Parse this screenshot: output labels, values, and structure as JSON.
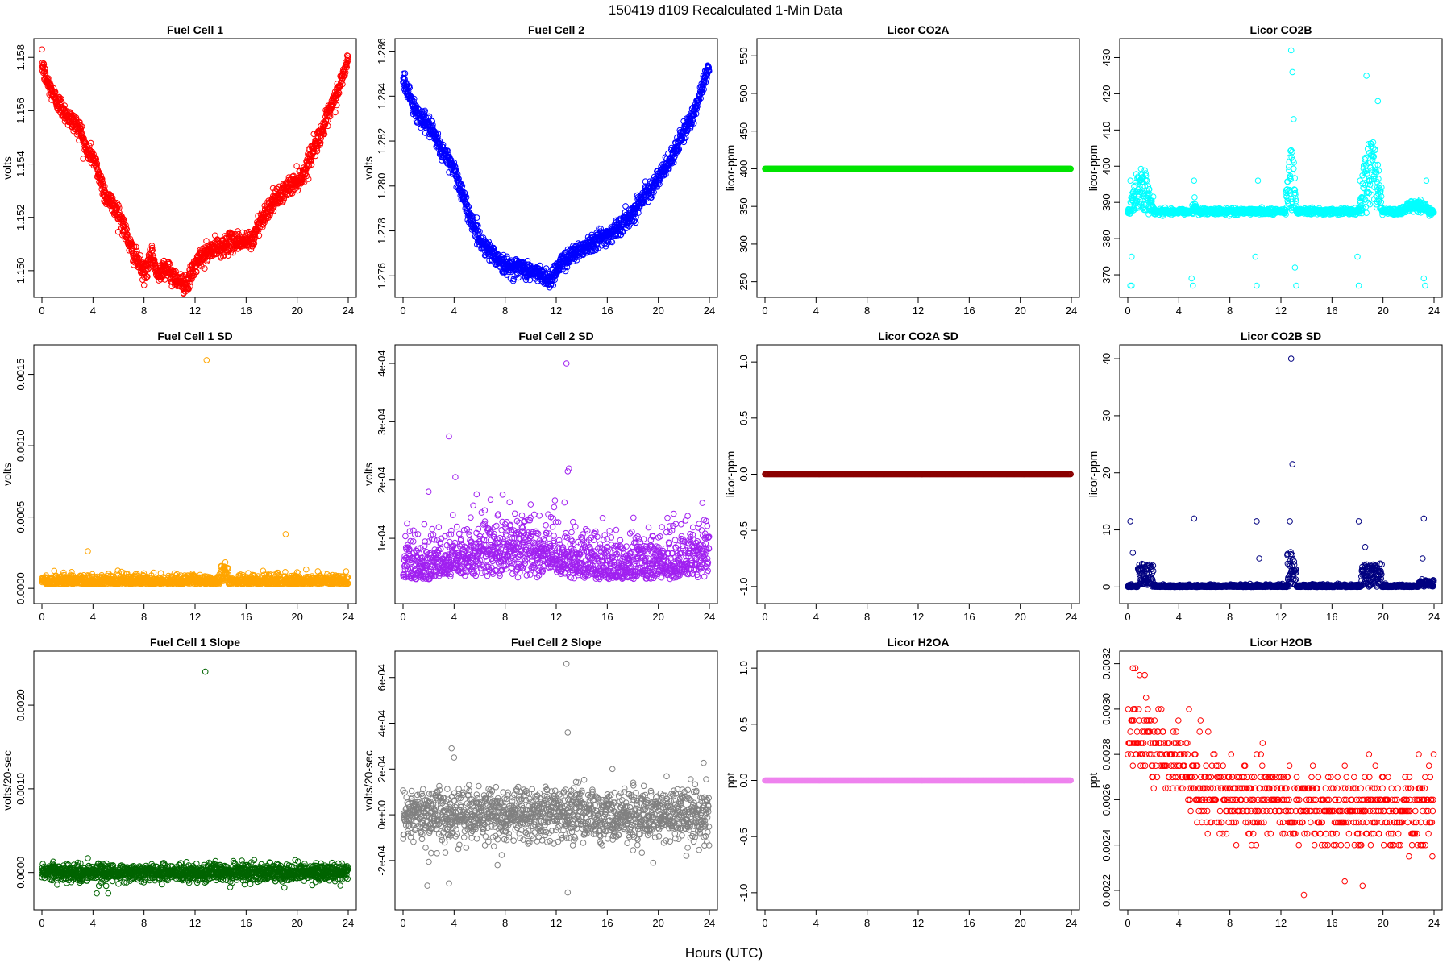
{
  "figure": {
    "title": "150419   d109   Recalculated 1-Min Data",
    "xlabel": "Hours (UTC)"
  },
  "chart_data": [
    {
      "type": "scatter",
      "title": "Fuel Cell 1",
      "ylabel": "volts",
      "color": "#ff0000",
      "xlim": [
        0,
        24
      ],
      "ylim": [
        1.1493,
        1.1584
      ],
      "xticks": [
        0,
        4,
        8,
        12,
        16,
        20,
        24
      ],
      "yticks": [
        1.15,
        1.152,
        1.154,
        1.156,
        1.158
      ],
      "ytick_labels": [
        "1.150",
        "1.152",
        "1.154",
        "1.156",
        "1.158"
      ],
      "pattern": {
        "kind": "anchors",
        "x": [
          0,
          0.3,
          1,
          2,
          3,
          3.5,
          4,
          5,
          6,
          7,
          8,
          8.7,
          9,
          9.5,
          10,
          11,
          11.5,
          12,
          12.5,
          13,
          14,
          15,
          16,
          16.5,
          17,
          18,
          19,
          20,
          20.5,
          21,
          22,
          23,
          23.5,
          24
        ],
        "y": [
          1.1578,
          1.1572,
          1.1565,
          1.1558,
          1.1553,
          1.1545,
          1.1543,
          1.1528,
          1.1522,
          1.1508,
          1.1499,
          1.1506,
          1.1498,
          1.1502,
          1.1499,
          1.1495,
          1.1496,
          1.1502,
          1.1505,
          1.1507,
          1.1509,
          1.1511,
          1.1511,
          1.1511,
          1.1518,
          1.1525,
          1.153,
          1.1534,
          1.1536,
          1.1543,
          1.1553,
          1.1565,
          1.1572,
          1.1579
        ],
        "noise": 0.00018
      }
    },
    {
      "type": "scatter",
      "title": "Fuel Cell 2",
      "ylabel": "volts",
      "color": "#0000ff",
      "xlim": [
        0,
        24
      ],
      "ylim": [
        1.2754,
        1.2862
      ],
      "xticks": [
        0,
        4,
        8,
        12,
        16,
        20,
        24
      ],
      "yticks": [
        1.276,
        1.278,
        1.28,
        1.282,
        1.284,
        1.286
      ],
      "ytick_labels": [
        "1.276",
        "1.278",
        "1.280",
        "1.282",
        "1.284",
        "1.286"
      ],
      "pattern": {
        "kind": "anchors",
        "x": [
          0,
          1,
          2,
          3,
          4,
          5,
          6,
          7,
          8,
          9,
          10,
          11,
          11.5,
          12,
          13,
          14,
          15,
          16,
          17,
          18,
          19,
          20,
          21,
          22,
          23,
          24
        ],
        "y": [
          1.2848,
          1.2833,
          1.2827,
          1.2816,
          1.2808,
          1.279,
          1.2776,
          1.277,
          1.2764,
          1.2764,
          1.2762,
          1.276,
          1.2758,
          1.2763,
          1.2769,
          1.2772,
          1.2776,
          1.2778,
          1.2782,
          1.2788,
          1.2797,
          1.2803,
          1.2812,
          1.2824,
          1.2835,
          1.2855
        ],
        "noise": 0.0002
      }
    },
    {
      "type": "scatter",
      "title": "Licor CO2A",
      "ylabel": "licor-ppm",
      "color": "#00e400",
      "xlim": [
        0,
        24
      ],
      "ylim": [
        240,
        562
      ],
      "xticks": [
        0,
        4,
        8,
        12,
        16,
        20,
        24
      ],
      "yticks": [
        250,
        300,
        350,
        400,
        450,
        500,
        550
      ],
      "ytick_labels": [
        "250",
        "300",
        "350",
        "400",
        "450",
        "500",
        "550"
      ],
      "pattern": {
        "kind": "constant",
        "value": 400,
        "noise": 0
      }
    },
    {
      "type": "scatter",
      "title": "Licor CO2B",
      "ylabel": "licor-ppm",
      "color": "#00ffff",
      "xlim": [
        0,
        24
      ],
      "ylim": [
        366,
        433
      ],
      "xticks": [
        0,
        4,
        8,
        12,
        16,
        20,
        24
      ],
      "yticks": [
        370,
        380,
        390,
        400,
        410,
        420,
        430
      ],
      "ytick_labels": [
        "370",
        "380",
        "390",
        "400",
        "410",
        "420",
        "430"
      ],
      "pattern": {
        "kind": "base_with_bursts",
        "base": 387.5,
        "noise": 0.4,
        "bursts": [
          {
            "x0": 0.2,
            "x1": 2.0,
            "amp": 12
          },
          {
            "x0": 5.0,
            "x1": 5.4,
            "amp": 3
          },
          {
            "x0": 12.4,
            "x1": 13.2,
            "amp": 18
          },
          {
            "x0": 18.2,
            "x1": 19.9,
            "amp": 20
          },
          {
            "x0": 21.5,
            "x1": 23.6,
            "amp": 3
          }
        ],
        "outliers": [
          [
            0.2,
            396
          ],
          [
            0.3,
            375
          ],
          [
            0.2,
            367
          ],
          [
            0.3,
            367
          ],
          [
            5.0,
            369
          ],
          [
            5.1,
            367
          ],
          [
            5.2,
            396
          ],
          [
            10.0,
            375
          ],
          [
            10.1,
            367
          ],
          [
            10.2,
            396
          ],
          [
            12.8,
            432
          ],
          [
            12.9,
            426
          ],
          [
            13.0,
            413
          ],
          [
            13.1,
            372
          ],
          [
            13.2,
            367
          ],
          [
            18.0,
            375
          ],
          [
            18.1,
            367
          ],
          [
            18.2,
            396
          ],
          [
            18.7,
            425
          ],
          [
            19.6,
            418
          ],
          [
            23.2,
            369
          ],
          [
            23.3,
            367
          ],
          [
            23.4,
            396
          ]
        ]
      }
    },
    {
      "type": "scatter",
      "title": "Fuel Cell 1 SD",
      "ylabel": "volts",
      "color": "#ffa500",
      "xlim": [
        0,
        24
      ],
      "ylim": [
        -5e-05,
        0.00165
      ],
      "xticks": [
        0,
        4,
        8,
        12,
        16,
        20,
        24
      ],
      "yticks": [
        0,
        0.0005,
        0.001,
        0.0015
      ],
      "ytick_labels": [
        "0.0000",
        "0.0005",
        "0.0010",
        "0.0015"
      ],
      "pattern": {
        "kind": "positive_noise",
        "base": 3e-05,
        "spread": 5e-05,
        "bursts": [
          {
            "x0": 14.0,
            "x1": 14.6,
            "amp": 0.0001
          }
        ],
        "outliers": [
          [
            12.9,
            0.0016
          ],
          [
            3.6,
            0.00026
          ],
          [
            19.1,
            0.00038
          ]
        ]
      }
    },
    {
      "type": "scatter",
      "title": "Fuel Cell 2 SD",
      "ylabel": "volts",
      "color": "#a020f0",
      "xlim": [
        0,
        24
      ],
      "ylim": [
        2e-06,
        0.000418
      ],
      "xticks": [
        0,
        4,
        8,
        12,
        16,
        20,
        24
      ],
      "yticks": [
        0.0001,
        0.0002,
        0.0003,
        0.0004
      ],
      "ytick_labels": [
        "1e-04",
        "2e-04",
        "3e-04",
        "4e-04"
      ],
      "pattern": {
        "kind": "positive_noise",
        "base": 3e-05,
        "spread": 6e-05,
        "hump": {
          "x0": 2.0,
          "x1": 15.0,
          "amp": 5e-05
        },
        "bursts": [
          {
            "x0": 21.8,
            "x1": 24.0,
            "amp": 3e-05
          }
        ],
        "outliers": [
          [
            12.8,
            0.0004
          ],
          [
            12.9,
            0.000215
          ],
          [
            13.0,
            0.00022
          ],
          [
            3.6,
            0.000275
          ],
          [
            4.1,
            0.000205
          ],
          [
            2.0,
            0.00018
          ],
          [
            11.9,
            0.000165
          ]
        ]
      }
    },
    {
      "type": "scatter",
      "title": "Licor CO2A SD",
      "ylabel": "licor-ppm",
      "color": "#8b0000",
      "xlim": [
        0,
        24
      ],
      "ylim": [
        -1.08,
        1.08
      ],
      "xticks": [
        0,
        4,
        8,
        12,
        16,
        20,
        24
      ],
      "yticks": [
        -1,
        -0.5,
        0,
        0.5,
        1
      ],
      "ytick_labels": [
        "-1.0",
        "-0.5",
        "0.0",
        "0.5",
        "1.0"
      ],
      "pattern": {
        "kind": "constant",
        "value": 0,
        "noise": 0
      }
    },
    {
      "type": "scatter",
      "title": "Licor CO2B SD",
      "ylabel": "licor-ppm",
      "color": "#000080",
      "xlim": [
        0,
        24
      ],
      "ylim": [
        -1.5,
        41
      ],
      "xticks": [
        0,
        4,
        8,
        12,
        16,
        20,
        24
      ],
      "yticks": [
        0,
        10,
        20,
        30,
        40
      ],
      "ytick_labels": [
        "0",
        "10",
        "20",
        "30",
        "40"
      ],
      "pattern": {
        "kind": "positive_noise",
        "base": 0.0,
        "spread": 0.3,
        "bursts": [
          {
            "x0": 0.8,
            "x1": 2.0,
            "amp": 4
          },
          {
            "x0": 12.5,
            "x1": 13.2,
            "amp": 6
          },
          {
            "x0": 18.3,
            "x1": 19.9,
            "amp": 4
          },
          {
            "x0": 22.8,
            "x1": 24.0,
            "amp": 1
          }
        ],
        "outliers": [
          [
            0.2,
            11.5
          ],
          [
            0.4,
            6
          ],
          [
            5.2,
            12
          ],
          [
            10.1,
            11.5
          ],
          [
            10.3,
            5
          ],
          [
            12.8,
            40
          ],
          [
            12.9,
            21.5
          ],
          [
            12.7,
            11.5
          ],
          [
            18.1,
            11.5
          ],
          [
            18.6,
            7
          ],
          [
            23.2,
            12
          ],
          [
            23.1,
            5
          ]
        ]
      }
    },
    {
      "type": "scatter",
      "title": "Fuel Cell 1 Slope",
      "ylabel": "volts/20-sec",
      "color": "#006400",
      "xlim": [
        0,
        24
      ],
      "ylim": [
        -0.00035,
        0.00255
      ],
      "xticks": [
        0,
        4,
        8,
        12,
        16,
        20,
        24
      ],
      "yticks": [
        0,
        0.001,
        0.002
      ],
      "ytick_labels": [
        "0.0000",
        "0.0010",
        "0.0020"
      ],
      "pattern": {
        "kind": "symmetric_noise",
        "center": 0,
        "spread": 5e-05,
        "outliers": [
          [
            12.8,
            0.0024
          ],
          [
            3.6,
            0.00017
          ],
          [
            4.3,
            -0.00025
          ],
          [
            5.2,
            -0.00025
          ],
          [
            19.0,
            -0.00018
          ]
        ]
      }
    },
    {
      "type": "scatter",
      "title": "Fuel Cell 2 Slope",
      "ylabel": "volts/20-sec",
      "color": "#808080",
      "xlim": [
        0,
        24
      ],
      "ylim": [
        -0.00038,
        0.00068
      ],
      "xticks": [
        0,
        4,
        8,
        12,
        16,
        20,
        24
      ],
      "yticks": [
        -0.0002,
        0,
        0.0002,
        0.0004,
        0.0006
      ],
      "ytick_labels": [
        "-2e-04",
        "0e+00",
        "2e-04",
        "4e-04",
        "6e-04"
      ],
      "pattern": {
        "kind": "symmetric_noise",
        "center": 0,
        "spread": 6e-05,
        "outliers": [
          [
            12.8,
            0.00066
          ],
          [
            12.9,
            0.00036
          ],
          [
            12.9,
            -0.00034
          ],
          [
            3.8,
            0.00029
          ],
          [
            4.0,
            0.00025
          ],
          [
            1.9,
            -0.00031
          ],
          [
            3.6,
            -0.0003
          ],
          [
            16.4,
            0.0002
          ],
          [
            19.6,
            -0.00021
          ],
          [
            7.4,
            -0.00022
          ]
        ]
      }
    },
    {
      "type": "scatter",
      "title": "Licor H2OA",
      "ylabel": "ppt",
      "color": "#ee82ee",
      "xlim": [
        0,
        24
      ],
      "ylim": [
        -1.08,
        1.08
      ],
      "xticks": [
        0,
        4,
        8,
        12,
        16,
        20,
        24
      ],
      "yticks": [
        -1,
        -0.5,
        0,
        0.5,
        1
      ],
      "ytick_labels": [
        "-1.0",
        "-0.5",
        "0.0",
        "0.5",
        "1.0"
      ],
      "pattern": {
        "kind": "constant",
        "value": 0,
        "noise": 0
      }
    },
    {
      "type": "scatter",
      "title": "Licor H2OB",
      "ylabel": "ppt",
      "color": "#ff0000",
      "xlim": [
        0,
        24
      ],
      "ylim": [
        0.00215,
        0.00322
      ],
      "xticks": [
        0,
        4,
        8,
        12,
        16,
        20,
        24
      ],
      "yticks": [
        0.0022,
        0.0024,
        0.0026,
        0.0028,
        0.003,
        0.0032
      ],
      "ytick_labels": [
        "0.0022",
        "0.0024",
        "0.0026",
        "0.0028",
        "0.0030",
        "0.0032"
      ],
      "pattern": {
        "kind": "quantized",
        "step": 5e-05,
        "anchors_x": [
          0,
          2,
          4,
          6,
          8,
          12,
          16,
          20,
          24
        ],
        "anchors_y": [
          0.0029,
          0.00285,
          0.00275,
          0.00265,
          0.0026,
          0.0026,
          0.00255,
          0.00255,
          0.00255
        ],
        "spread": 0.00012,
        "outliers": [
          [
            0.4,
            0.00318
          ],
          [
            0.6,
            0.00318
          ],
          [
            13.8,
            0.00218
          ],
          [
            18.4,
            0.00222
          ],
          [
            17.0,
            0.00224
          ]
        ]
      }
    }
  ]
}
